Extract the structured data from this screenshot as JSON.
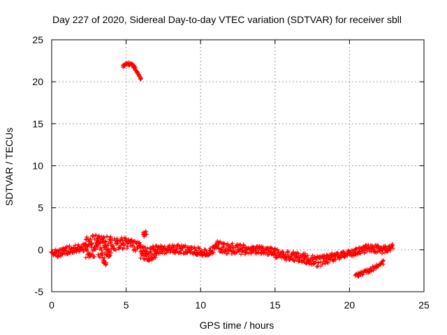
{
  "chart_data": {
    "type": "scatter",
    "title": "Day 227 of 2020, Sidereal Day-to-day VTEC variation (SDTVAR) for receiver sbll",
    "xlabel": "GPS time / hours",
    "ylabel": "SDTVAR / TECUs",
    "xlim": [
      0,
      25
    ],
    "ylim": [
      -5,
      25
    ],
    "xticks": [
      0,
      5,
      10,
      15,
      20,
      25
    ],
    "yticks": [
      -5,
      0,
      5,
      10,
      15,
      20,
      25
    ],
    "grid": true,
    "marker_color": "#ff0000",
    "series": [
      {
        "name": "SDTVAR",
        "marker": "+",
        "bands": [
          {
            "x_start": 0.0,
            "x_end": 0.8,
            "step": 0.05,
            "y_pts": [
              [
                0.0,
                -0.3
              ],
              [
                0.4,
                -0.5
              ],
              [
                0.8,
                -0.2
              ]
            ],
            "spread": 0.9
          },
          {
            "x_start": 0.8,
            "x_end": 2.3,
            "step": 0.05,
            "y_pts": [
              [
                0.8,
                -0.2
              ],
              [
                1.5,
                0.1
              ],
              [
                2.3,
                0.3
              ]
            ],
            "spread": 1.0
          },
          {
            "x_start": 2.3,
            "x_end": 4.0,
            "step": 0.04,
            "y_pts": [
              [
                2.3,
                0.3
              ],
              [
                3.0,
                0.5
              ],
              [
                3.6,
                0.2
              ],
              [
                4.0,
                0.6
              ]
            ],
            "spread": 2.6
          },
          {
            "x_start": 4.0,
            "x_end": 6.0,
            "step": 0.05,
            "y_pts": [
              [
                4.0,
                0.6
              ],
              [
                5.0,
                0.8
              ],
              [
                6.0,
                0.3
              ]
            ],
            "spread": 1.4
          },
          {
            "x_start": 6.0,
            "x_end": 7.0,
            "step": 0.05,
            "y_pts": [
              [
                6.0,
                -0.3
              ],
              [
                6.5,
                -0.6
              ],
              [
                7.0,
                -0.2
              ]
            ],
            "spread": 1.6
          },
          {
            "x_start": 7.0,
            "x_end": 10.0,
            "step": 0.05,
            "y_pts": [
              [
                7.0,
                0.0
              ],
              [
                8.5,
                0.1
              ],
              [
                10.0,
                -0.2
              ]
            ],
            "spread": 1.0
          },
          {
            "x_start": 10.0,
            "x_end": 11.0,
            "step": 0.05,
            "y_pts": [
              [
                10.0,
                -0.3
              ],
              [
                10.5,
                -0.4
              ],
              [
                11.0,
                0.2
              ]
            ],
            "spread": 0.8
          },
          {
            "x_start": 11.0,
            "x_end": 13.0,
            "step": 0.05,
            "y_pts": [
              [
                11.0,
                0.5
              ],
              [
                11.5,
                0.2
              ],
              [
                12.3,
                0.1
              ],
              [
                13.0,
                0.0
              ]
            ],
            "spread": 1.3
          },
          {
            "x_start": 13.0,
            "x_end": 15.0,
            "step": 0.05,
            "y_pts": [
              [
                13.0,
                -0.1
              ],
              [
                14.0,
                0.0
              ],
              [
                15.0,
                -0.3
              ]
            ],
            "spread": 1.0
          },
          {
            "x_start": 15.0,
            "x_end": 17.0,
            "step": 0.05,
            "y_pts": [
              [
                15.0,
                -0.4
              ],
              [
                16.0,
                -0.8
              ],
              [
                17.0,
                -1.0
              ]
            ],
            "spread": 1.1
          },
          {
            "x_start": 17.0,
            "x_end": 19.0,
            "step": 0.05,
            "y_pts": [
              [
                17.0,
                -1.0
              ],
              [
                17.8,
                -1.4
              ],
              [
                18.5,
                -1.2
              ],
              [
                19.0,
                -0.9
              ]
            ],
            "spread": 1.3
          },
          {
            "x_start": 19.0,
            "x_end": 21.0,
            "step": 0.05,
            "y_pts": [
              [
                19.0,
                -0.8
              ],
              [
                20.0,
                -0.4
              ],
              [
                21.0,
                0.0
              ]
            ],
            "spread": 0.9
          },
          {
            "x_start": 21.0,
            "x_end": 22.9,
            "step": 0.05,
            "y_pts": [
              [
                21.0,
                0.1
              ],
              [
                21.5,
                0.2
              ],
              [
                22.2,
                0.0
              ],
              [
                22.9,
                0.3
              ]
            ],
            "spread": 0.9
          },
          {
            "x_start": 20.4,
            "x_end": 22.3,
            "step": 0.07,
            "y_pts": [
              [
                20.4,
                -3.1
              ],
              [
                21.3,
                -2.5
              ],
              [
                22.3,
                -1.5
              ]
            ],
            "spread": 0.5
          },
          {
            "x_start": 4.8,
            "x_end": 6.0,
            "step": 0.04,
            "y_pts": [
              [
                4.8,
                21.9
              ],
              [
                5.1,
                22.2
              ],
              [
                5.4,
                22.0
              ],
              [
                5.7,
                21.4
              ],
              [
                6.0,
                20.3
              ]
            ],
            "spread": 0.35
          },
          {
            "x_start": 6.15,
            "x_end": 6.35,
            "step": 0.05,
            "y_pts": [
              [
                6.15,
                2.0
              ],
              [
                6.35,
                1.8
              ]
            ],
            "spread": 0.8
          },
          {
            "x_start": 3.45,
            "x_end": 3.65,
            "step": 0.04,
            "y_pts": [
              [
                3.45,
                -1.4
              ],
              [
                3.65,
                -1.6
              ]
            ],
            "spread": 0.6
          }
        ]
      }
    ]
  }
}
